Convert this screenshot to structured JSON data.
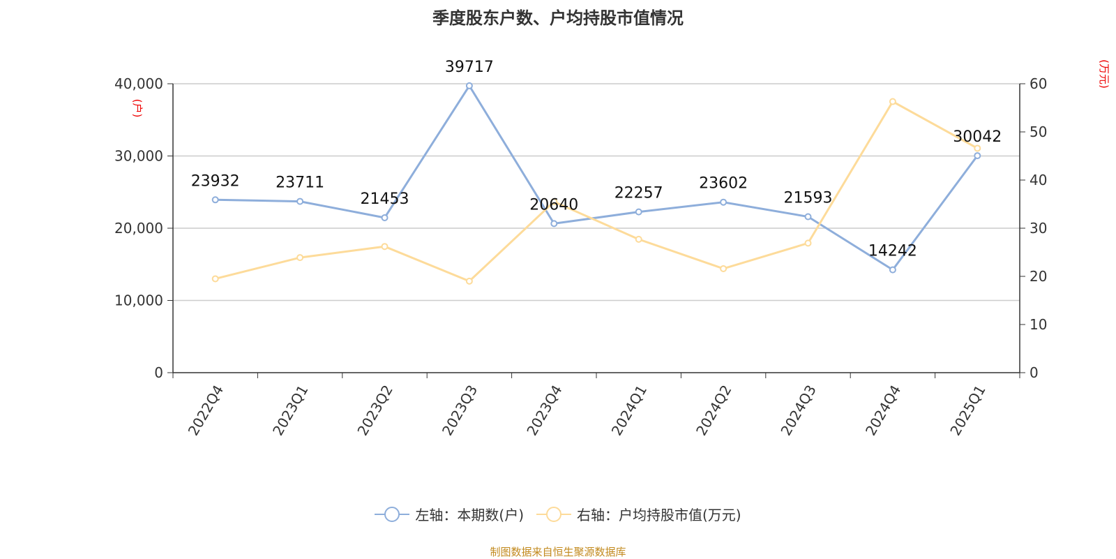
{
  "title": "季度股东户数、户均持股市值情况",
  "source": "制图数据来自恒生聚源数据库",
  "chart_data": {
    "type": "line",
    "title": "季度股东户数、户均持股市值情况",
    "categories": [
      "2022Q4",
      "2023Q1",
      "2023Q2",
      "2023Q3",
      "2023Q4",
      "2024Q1",
      "2024Q2",
      "2024Q3",
      "2024Q4",
      "2025Q1"
    ],
    "left_axis": {
      "unit": "(户)",
      "ylim": [
        0,
        40000
      ],
      "ticks": [
        "0",
        "10,000",
        "20,000",
        "30,000",
        "40,000"
      ],
      "tick_values": [
        0,
        10000,
        20000,
        30000,
        40000
      ]
    },
    "right_axis": {
      "unit": "(万元)",
      "ylim": [
        0,
        60
      ],
      "ticks": [
        "0",
        "10",
        "20",
        "30",
        "40",
        "50",
        "60"
      ],
      "tick_values": [
        0,
        10,
        20,
        30,
        40,
        50,
        60
      ]
    },
    "grid": true,
    "legend_position": "bottom",
    "series": [
      {
        "name": "左轴：本期数(户)",
        "axis": "left",
        "color": "#8eaedb",
        "values": [
          23932,
          23711,
          21453,
          39717,
          20640,
          22257,
          23602,
          21593,
          14242,
          30042
        ],
        "labels": [
          "23932",
          "23711",
          "21453",
          "39717",
          "20640",
          "22257",
          "23602",
          "21593",
          "14242",
          "30042"
        ]
      },
      {
        "name": "右轴：户均持股市值(万元)",
        "axis": "right",
        "color": "#fddb9a",
        "values": [
          19.5,
          23.9,
          26.2,
          19.0,
          35.5,
          27.7,
          21.6,
          26.9,
          56.3,
          46.6
        ]
      }
    ]
  }
}
